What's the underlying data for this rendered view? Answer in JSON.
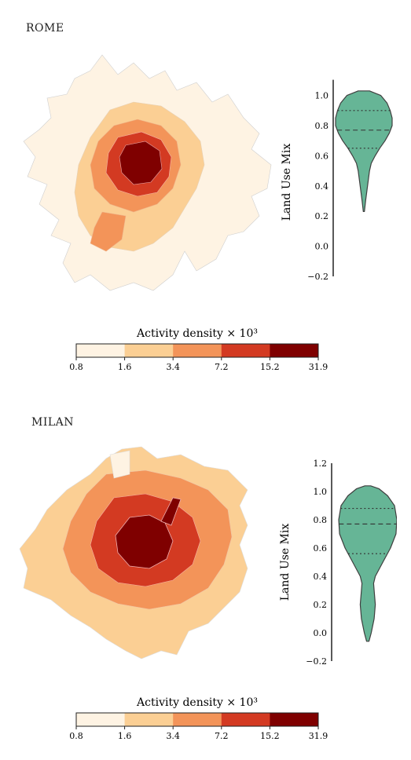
{
  "colorbar": {
    "title": "Activity density × 10³",
    "ticks": [
      "0.8",
      "1.6",
      "3.4",
      "7.2",
      "15.2",
      "31.9"
    ],
    "colors": [
      "#fef3e3",
      "#fbcf94",
      "#f39459",
      "#d33a22",
      "#7f0000"
    ]
  },
  "chart_data": [
    {
      "type": "violin",
      "city": "ROME",
      "ylabel": "Land Use Mix",
      "ylim": [
        -0.2,
        1.05
      ],
      "yticks": [
        "−0.2",
        "0.0",
        "0.2",
        "0.4",
        "0.6",
        "0.8",
        "1.0"
      ],
      "ytick_values": [
        -0.2,
        0.0,
        0.2,
        0.4,
        0.6,
        0.8,
        1.0
      ],
      "distribution": {
        "min": 0.23,
        "max": 1.03,
        "q1": 0.65,
        "median": 0.77,
        "q3": 0.9
      },
      "profile": [
        [
          0.23,
          0.02
        ],
        [
          0.3,
          0.06
        ],
        [
          0.4,
          0.13
        ],
        [
          0.5,
          0.2
        ],
        [
          0.55,
          0.26
        ],
        [
          0.6,
          0.4
        ],
        [
          0.65,
          0.56
        ],
        [
          0.7,
          0.75
        ],
        [
          0.75,
          0.9
        ],
        [
          0.8,
          1.0
        ],
        [
          0.85,
          1.0
        ],
        [
          0.9,
          0.93
        ],
        [
          0.95,
          0.82
        ],
        [
          1.0,
          0.6
        ],
        [
          1.03,
          0.2
        ]
      ],
      "fill_color": "#66b596",
      "map_colors": [
        "#fef3e3",
        "#fbcf94",
        "#f39459",
        "#d33a22",
        "#7f0000"
      ]
    },
    {
      "type": "violin",
      "city": "MILAN",
      "ylabel": "Land Use Mix",
      "ylim": [
        -0.2,
        1.2
      ],
      "yticks": [
        "−0.2",
        "0.0",
        "0.2",
        "0.4",
        "0.6",
        "0.8",
        "1.0",
        "1.2"
      ],
      "ytick_values": [
        -0.2,
        0.0,
        0.2,
        0.4,
        0.6,
        0.8,
        1.0,
        1.2
      ],
      "distribution": {
        "min": -0.06,
        "max": 1.04,
        "q1": 0.56,
        "median": 0.77,
        "q3": 0.88
      },
      "profile": [
        [
          -0.06,
          0.04
        ],
        [
          0.0,
          0.12
        ],
        [
          0.1,
          0.22
        ],
        [
          0.2,
          0.26
        ],
        [
          0.3,
          0.22
        ],
        [
          0.35,
          0.2
        ],
        [
          0.4,
          0.26
        ],
        [
          0.5,
          0.52
        ],
        [
          0.6,
          0.78
        ],
        [
          0.7,
          0.97
        ],
        [
          0.8,
          1.0
        ],
        [
          0.9,
          0.92
        ],
        [
          0.97,
          0.68
        ],
        [
          1.02,
          0.38
        ],
        [
          1.04,
          0.1
        ]
      ],
      "fill_color": "#66b596",
      "map_colors": [
        "#fef3e3",
        "#fbcf94",
        "#f39459",
        "#d33a22",
        "#7f0000"
      ]
    }
  ]
}
